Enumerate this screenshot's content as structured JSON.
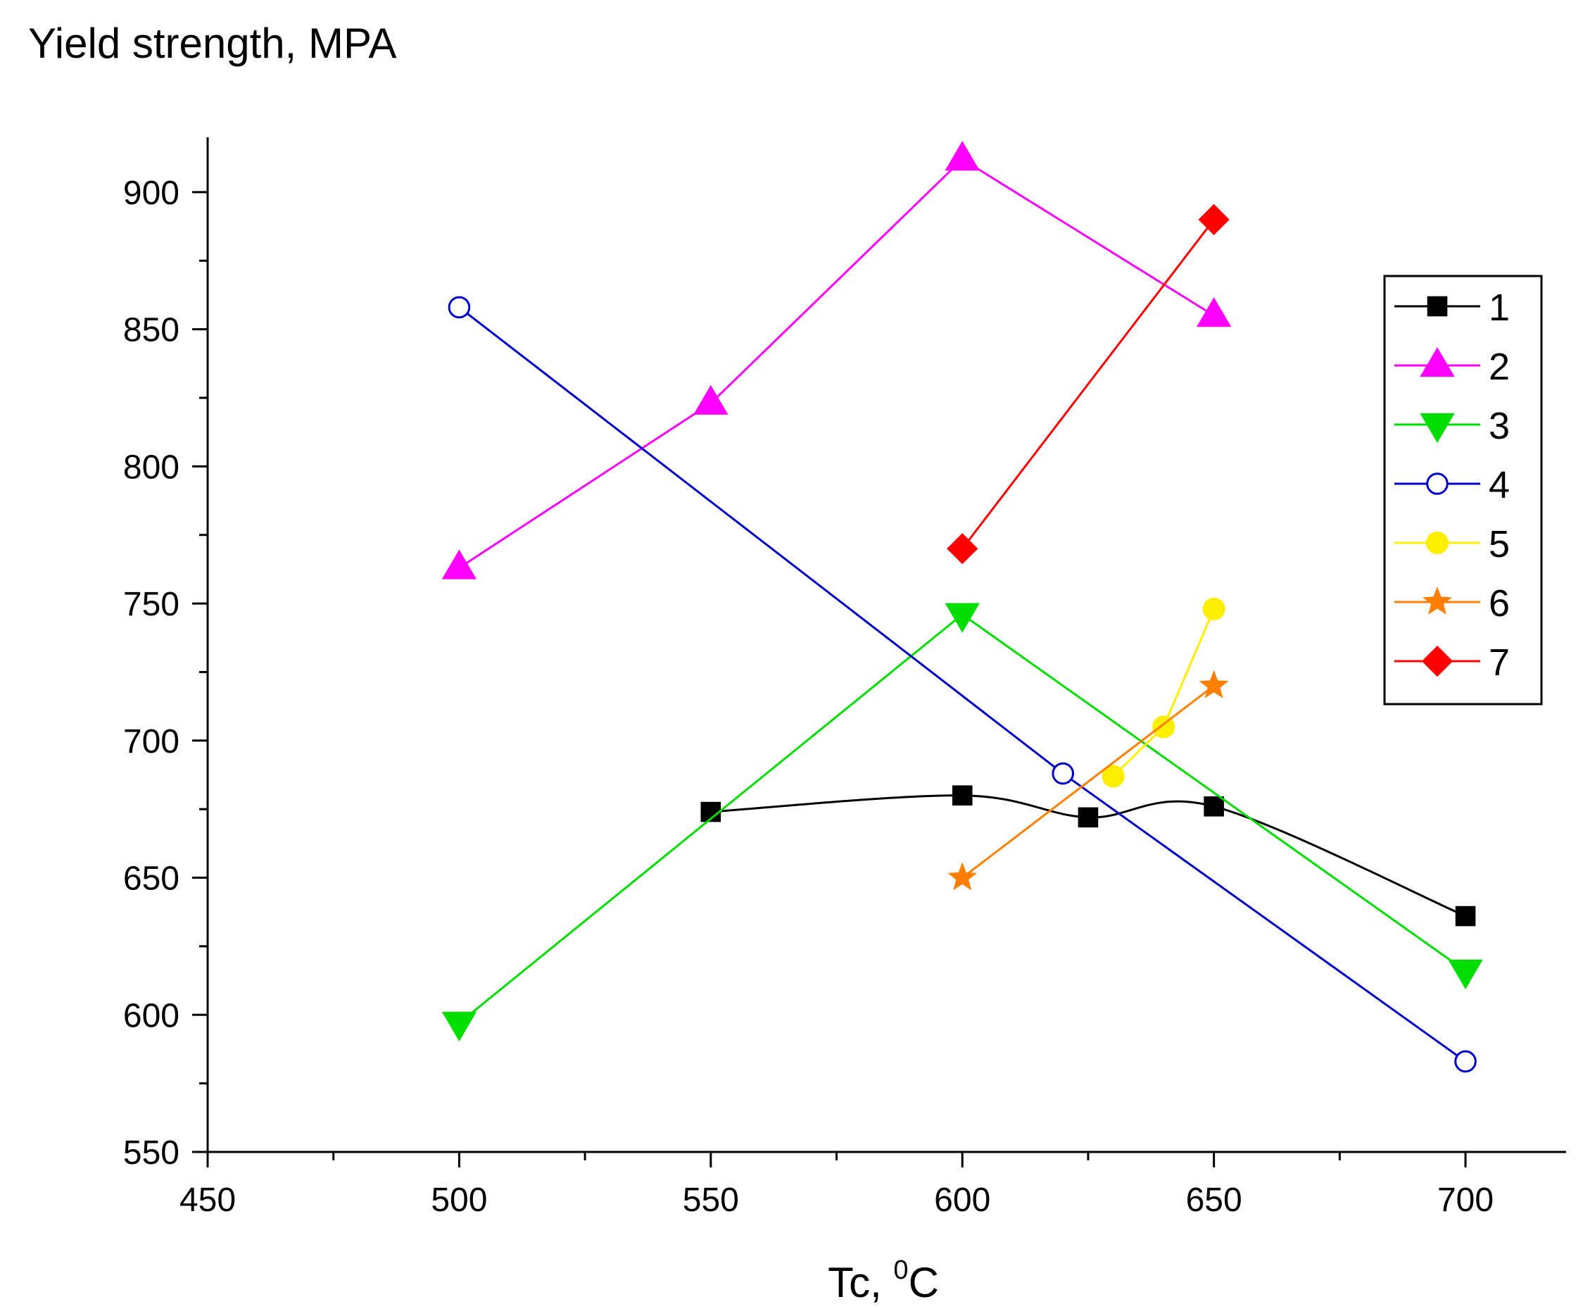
{
  "chart_data": {
    "type": "line",
    "title": "",
    "ylabel": "Yield strength, MPA",
    "xlabel": "Tc, ",
    "xlabel_sup": "0",
    "xlabel_unit": "C",
    "xlim": [
      450,
      720
    ],
    "ylim": [
      550,
      920
    ],
    "xticks": [
      "450",
      "500",
      "550",
      "600",
      "650",
      "700"
    ],
    "yticks": [
      "550",
      "600",
      "650",
      "700",
      "750",
      "800",
      "850",
      "900"
    ],
    "grid": false,
    "legend_position": "right",
    "series": [
      {
        "name": "1",
        "color": "#000000",
        "marker": "square",
        "smooth": true,
        "x": [
          550,
          600,
          625,
          650,
          700
        ],
        "y": [
          674,
          680,
          672,
          676,
          636
        ]
      },
      {
        "name": "2",
        "color": "#ff00ff",
        "marker": "triangle-up",
        "x": [
          500,
          550,
          600,
          650
        ],
        "y": [
          763,
          823,
          912,
          855
        ]
      },
      {
        "name": "3",
        "color": "#00dd00",
        "marker": "triangle-down",
        "x": [
          500,
          600,
          700
        ],
        "y": [
          597,
          746,
          616
        ]
      },
      {
        "name": "4",
        "color": "#0000cc",
        "marker": "circle-open",
        "x": [
          500,
          620,
          700
        ],
        "y": [
          858,
          688,
          583
        ]
      },
      {
        "name": "5",
        "color": "#ffee00",
        "marker": "circle",
        "x": [
          630,
          640,
          650
        ],
        "y": [
          687,
          705,
          748
        ]
      },
      {
        "name": "6",
        "color": "#ff8000",
        "marker": "star",
        "x": [
          600,
          650
        ],
        "y": [
          650,
          720
        ]
      },
      {
        "name": "7",
        "color": "#ff0000",
        "marker": "diamond",
        "x": [
          600,
          650
        ],
        "y": [
          770,
          890
        ]
      }
    ]
  }
}
